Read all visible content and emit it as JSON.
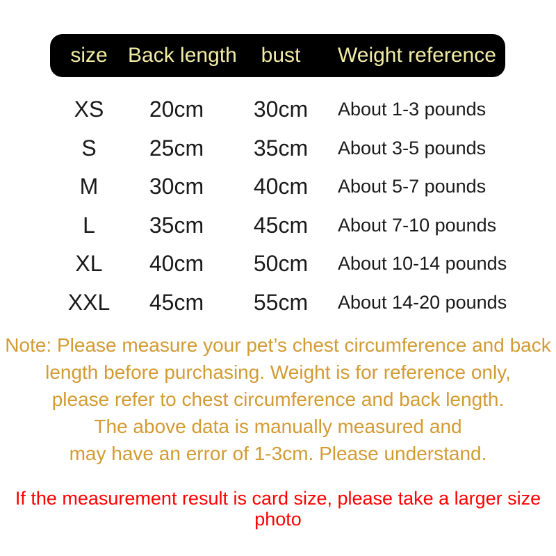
{
  "colors": {
    "background": "#FFFFFF",
    "header_bg": "#000000",
    "header_text": "#F2ECA6",
    "body_text": "#1A1A1A",
    "note_text": "#D29B33",
    "warning_text": "#FF0000"
  },
  "table": {
    "headers": [
      "size",
      "Back length",
      "bust",
      "Weight reference"
    ],
    "rows": [
      {
        "size": "XS",
        "back_length": "20cm",
        "bust": "30cm",
        "weight": "About 1-3 pounds"
      },
      {
        "size": "S",
        "back_length": "25cm",
        "bust": "35cm",
        "weight": "About 3-5 pounds"
      },
      {
        "size": "M",
        "back_length": "30cm",
        "bust": "40cm",
        "weight": "About 5-7 pounds"
      },
      {
        "size": "L",
        "back_length": "35cm",
        "bust": "45cm",
        "weight": "About 7-10 pounds"
      },
      {
        "size": "XL",
        "back_length": "40cm",
        "bust": "50cm",
        "weight": "About 10-14 pounds"
      },
      {
        "size": "XXL",
        "back_length": "45cm",
        "bust": "55cm",
        "weight": "About 14-20 pounds"
      }
    ]
  },
  "note": {
    "lines": [
      "Note: Please measure your pet’s chest circumference and back",
      "length before purchasing. Weight is for reference only,",
      "please refer to chest circumference and back length.",
      "The above data is manually measured and",
      "may have an error of 1-3cm. Please understand."
    ]
  },
  "warning": {
    "text": "If the measurement result is card size, please take a larger size photo"
  }
}
